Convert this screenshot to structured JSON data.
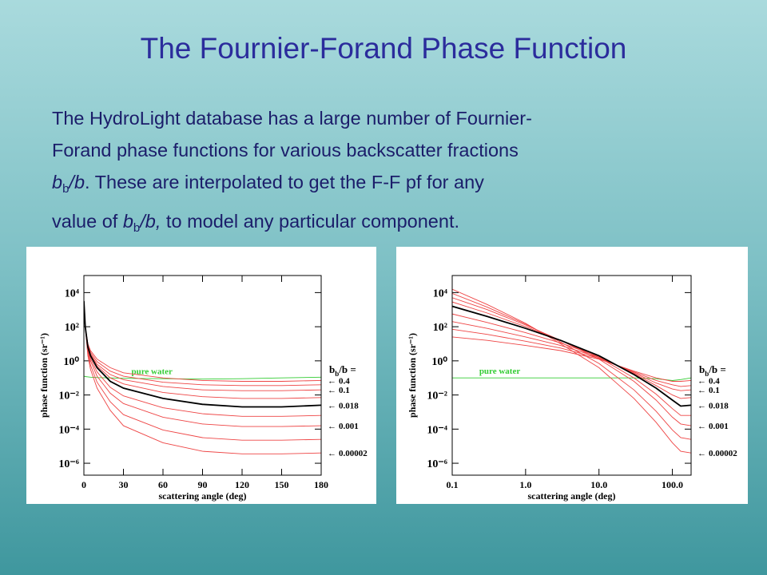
{
  "title": "The Fournier-Forand Phase Function",
  "body": {
    "lines": [
      [
        {
          "text": "The HydroLight database has a large number of Fournier-",
          "style": "plain"
        }
      ],
      [
        {
          "text": "Forand phase functions for various backscatter fractions",
          "style": "plain"
        }
      ],
      [
        {
          "text": "b",
          "style": "italic"
        },
        {
          "text": "b",
          "style": "sub"
        },
        {
          "text": "/b",
          "style": "italic"
        },
        {
          "text": ".  These are interpolated to get the F-F pf for any",
          "style": "plain"
        }
      ],
      [
        {
          "text": "value of ",
          "style": "plain"
        },
        {
          "text": "b",
          "style": "italic"
        },
        {
          "text": "b",
          "style": "sub"
        },
        {
          "text": "/b,",
          "style": "italic"
        },
        {
          "text": " to model any particular component.",
          "style": "plain"
        }
      ]
    ]
  },
  "chart_data": [
    {
      "type": "line",
      "x_label": "scattering angle   (deg)",
      "y_label": "phase function   (sr⁻¹)",
      "x_log": false,
      "y_log": true,
      "legend_title": {
        "symbol": "b",
        "subscript": "b",
        "rest": "/b ="
      },
      "xlim": [
        0,
        180
      ],
      "ylim": [
        2e-07,
        100000.0
      ],
      "xticks": [
        0,
        30,
        60,
        90,
        120,
        150,
        180
      ],
      "yticks": [
        {
          "value": 1e-06,
          "label": "10⁻⁶"
        },
        {
          "value": 0.0001,
          "label": "10⁻⁴"
        },
        {
          "value": 0.01,
          "label": "10⁻²"
        },
        {
          "value": 1,
          "label": "10⁰"
        },
        {
          "value": 100,
          "label": "10²"
        },
        {
          "value": 10000.0,
          "label": "10⁴"
        }
      ],
      "x": [
        0,
        1,
        3,
        5,
        10,
        20,
        30,
        60,
        90,
        120,
        150,
        180
      ],
      "series": [
        {
          "name": "pure water",
          "color": "#33cc33",
          "label_position": "inline",
          "values": [
            0.126,
            0.12,
            0.115,
            0.11,
            0.105,
            0.1,
            0.095,
            0.09,
            0.085,
            0.09,
            0.1,
            0.11
          ]
        },
        {
          "name": "0.4",
          "color": "#ee4444",
          "label_position": "right",
          "values": [
            3200,
            100,
            10,
            3.98,
            1.26,
            0.398,
            0.2,
            0.1,
            0.0708,
            0.0631,
            0.0631,
            0.0708
          ]
        },
        {
          "color": "#ee4444",
          "values": [
            3200,
            100,
            8.91,
            3.16,
            0.891,
            0.251,
            0.126,
            0.0562,
            0.0398,
            0.0355,
            0.0355,
            0.0398
          ]
        },
        {
          "name": "0.1",
          "color": "#ee4444",
          "label_position": "right",
          "values": [
            3200,
            100,
            7.94,
            2.51,
            0.631,
            0.158,
            0.0794,
            0.0316,
            0.02,
            0.0178,
            0.0178,
            0.02
          ]
        },
        {
          "color": "#ee4444",
          "values": [
            3200,
            100,
            7.08,
            2.24,
            0.501,
            0.1,
            0.0447,
            0.0141,
            0.00794,
            0.00631,
            0.00631,
            0.00708
          ]
        },
        {
          "color": "#ee4444",
          "values": [
            3200,
            100,
            5.01,
            1.41,
            0.224,
            0.0282,
            0.00891,
            0.00178,
            0.000794,
            0.000562,
            0.000562,
            0.000631
          ]
        },
        {
          "name": "0.001",
          "color": "#ee4444",
          "label_position": "right",
          "values": [
            3200,
            100,
            3.98,
            1,
            0.126,
            0.0126,
            0.00316,
            0.0005,
            0.0002,
            0.000141,
            0.000141,
            0.000158
          ]
        },
        {
          "color": "#ee4444",
          "values": [
            3200,
            100,
            2.82,
            0.562,
            0.0562,
            0.00398,
            0.000708,
            8.91e-05,
            3.16e-05,
            2.24e-05,
            2.24e-05,
            2.51e-05
          ]
        },
        {
          "name": "0.00002",
          "color": "#ee4444",
          "label_position": "right",
          "values": [
            3200,
            100,
            2,
            0.316,
            0.0251,
            0.00126,
            0.000158,
            1.58e-05,
            5e-06,
            3.55e-06,
            3.55e-06,
            3.98e-06
          ]
        },
        {
          "name": "0.018",
          "color": "#000000",
          "label_position": "right",
          "values": [
            3200,
            100,
            6.31,
            2,
            0.398,
            0.0631,
            0.0251,
            0.00631,
            0.00282,
            0.002,
            0.002,
            0.00251
          ]
        }
      ]
    },
    {
      "type": "line",
      "x_label": "scattering angle   (deg)",
      "y_label": "phase function   (sr⁻¹)",
      "x_log": true,
      "y_log": true,
      "legend_title": {
        "symbol": "b",
        "subscript": "b",
        "rest": "/b ="
      },
      "xlim": [
        0.1,
        180
      ],
      "ylim": [
        2e-07,
        100000.0
      ],
      "xticks": [
        0.1,
        {
          "value": 1,
          "label": "1.0"
        },
        {
          "value": 10,
          "label": "10.0"
        },
        {
          "value": 100,
          "label": "100.0"
        }
      ],
      "yticks": [
        {
          "value": 1e-06,
          "label": "10⁻⁶"
        },
        {
          "value": 0.0001,
          "label": "10⁻⁴"
        },
        {
          "value": 0.01,
          "label": "10⁻²"
        },
        {
          "value": 1,
          "label": "10⁰"
        },
        {
          "value": 100,
          "label": "10²"
        },
        {
          "value": 10000.0,
          "label": "10⁴"
        }
      ],
      "x": [
        0.1,
        0.3,
        1,
        3,
        10,
        30,
        60,
        100,
        130,
        180
      ],
      "series": [
        {
          "name": "pure water",
          "color": "#33cc33",
          "label_position": "inline",
          "values": [
            0.1,
            0.1,
            0.1,
            0.1,
            0.1,
            0.1,
            0.09,
            0.07,
            0.08,
            0.1
          ]
        },
        {
          "name": "0.4",
          "color": "#ee4444",
          "label_position": "right",
          "values": [
            25.1,
            15.8,
            7.94,
            3.98,
            1.26,
            0.251,
            0.1,
            0.0631,
            0.0631,
            0.0708
          ]
        },
        {
          "color": "#ee4444",
          "values": [
            70.8,
            35.5,
            14.1,
            5.62,
            1.41,
            0.224,
            0.0708,
            0.0398,
            0.0316,
            0.0355
          ]
        },
        {
          "name": "0.1",
          "color": "#ee4444",
          "label_position": "right",
          "values": [
            200,
            79.4,
            25.1,
            7.94,
            1.58,
            0.2,
            0.0501,
            0.0224,
            0.0178,
            0.02
          ]
        },
        {
          "color": "#ee4444",
          "values": [
            562,
            178,
            44.7,
            11.2,
            1.78,
            0.178,
            0.0355,
            0.01,
            0.00631,
            0.00708
          ]
        },
        {
          "color": "#ee4444",
          "values": [
            2820,
            631,
            100,
            15.8,
            1.58,
            0.1,
            0.0112,
            0.00158,
            0.000631,
            0.000631
          ]
        },
        {
          "name": "0.001",
          "color": "#ee4444",
          "label_position": "right",
          "values": [
            5010,
            1000,
            126,
            15.8,
            1.26,
            0.0631,
            0.00501,
            0.000501,
            0.0002,
            0.000158
          ]
        },
        {
          "color": "#ee4444",
          "values": [
            8910,
            1410,
            141,
            12.6,
            0.708,
            0.02,
            0.00112,
            8.91e-05,
            3.16e-05,
            2.51e-05
          ]
        },
        {
          "name": "0.00002",
          "color": "#ee4444",
          "label_position": "right",
          "values": [
            15800,
            2000,
            158,
            10,
            0.398,
            0.00631,
            0.000251,
            1.58e-05,
            5.01e-06,
            3.98e-06
          ]
        },
        {
          "name": "0.018",
          "color": "#000000",
          "label_position": "right",
          "values": [
            1580,
            398,
            79.4,
            15.8,
            2,
            0.158,
            0.0251,
            0.00501,
            0.00224,
            0.00251
          ]
        }
      ]
    }
  ]
}
